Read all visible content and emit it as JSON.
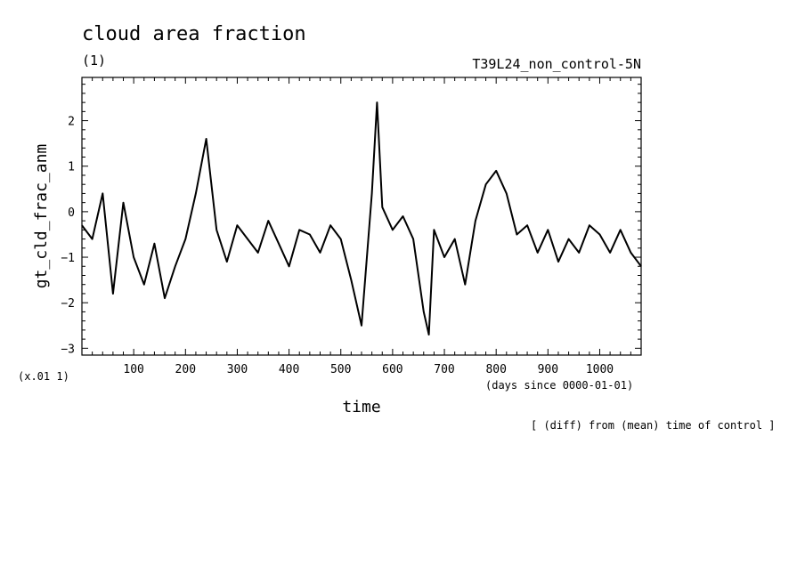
{
  "chart_data": {
    "type": "line",
    "title": "cloud area fraction",
    "subtitle": "(1)",
    "run_label": "T39L24_non_control-5N",
    "ylabel": "gt_cld_frac_anm",
    "xlabel": "time",
    "x_units": "(days since 0000-01-01)",
    "y_scale_note": "(x.01 1)",
    "footnote": "[ (diff) from (mean) time of control ]",
    "xlim": [
      0,
      1080
    ],
    "ylim": [
      -3.15,
      2.95
    ],
    "xticks": [
      100,
      200,
      300,
      400,
      500,
      600,
      700,
      800,
      900,
      1000
    ],
    "yticks": [
      -3,
      -2,
      -1,
      0,
      1,
      2
    ],
    "grid": false,
    "series": [
      {
        "color": "#000000",
        "x": [
          0,
          20,
          40,
          60,
          80,
          100,
          120,
          140,
          160,
          180,
          200,
          220,
          240,
          260,
          280,
          300,
          320,
          340,
          360,
          380,
          400,
          420,
          440,
          460,
          480,
          500,
          520,
          540,
          560,
          570,
          580,
          600,
          620,
          640,
          660,
          670,
          680,
          700,
          720,
          740,
          760,
          780,
          800,
          820,
          840,
          860,
          880,
          900,
          920,
          940,
          960,
          980,
          1000,
          1020,
          1040,
          1060,
          1080
        ],
        "y": [
          -0.3,
          -0.6,
          0.4,
          -1.8,
          0.2,
          -1.0,
          -1.6,
          -0.7,
          -1.9,
          -1.2,
          -0.6,
          0.4,
          1.6,
          -0.4,
          -1.1,
          -0.3,
          -0.6,
          -0.9,
          -0.2,
          -0.7,
          -1.2,
          -0.4,
          -0.5,
          -0.9,
          -0.3,
          -0.6,
          -1.5,
          -2.5,
          0.4,
          2.4,
          0.1,
          -0.4,
          -0.1,
          -0.6,
          -2.2,
          -2.7,
          -0.4,
          -1.0,
          -0.6,
          -1.6,
          -0.2,
          0.6,
          0.9,
          0.4,
          -0.5,
          -0.3,
          -0.9,
          -0.4,
          -1.1,
          -0.6,
          -0.9,
          -0.3,
          -0.5,
          -0.9,
          -0.4,
          -0.9,
          -1.2
        ]
      }
    ]
  }
}
